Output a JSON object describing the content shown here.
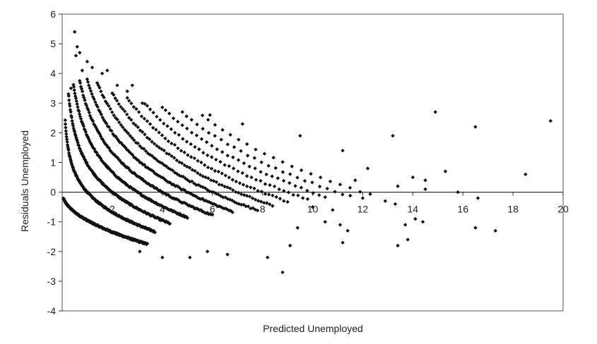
{
  "chart_data": {
    "type": "scatter",
    "title": "",
    "xlabel": "Predicted Unemployed",
    "ylabel": "Residuals Unemployed",
    "xlim": [
      0,
      20
    ],
    "ylim": [
      -4,
      6
    ],
    "x_ticks": [
      "2",
      "4",
      "6",
      "8",
      "10",
      "12",
      "14",
      "16",
      "18",
      "20"
    ],
    "y_ticks": [
      "6",
      "5",
      "4",
      "3",
      "2",
      "1",
      "0",
      "-1",
      "-2",
      "-3",
      "-4"
    ],
    "grid": false,
    "legend": "none",
    "marker": "diamond",
    "point_color": "#111111",
    "curve_families": [
      {
        "k": 0,
        "x_range": [
          0.05,
          3.4
        ],
        "count": 260
      },
      {
        "k": 1,
        "x_range": [
          0.12,
          3.7
        ],
        "count": 190
      },
      {
        "k": 2,
        "x_range": [
          0.25,
          4.3
        ],
        "count": 160
      },
      {
        "k": 3,
        "x_range": [
          0.45,
          5.0
        ],
        "count": 140
      },
      {
        "k": 4,
        "x_range": [
          0.7,
          6.0
        ],
        "count": 120
      },
      {
        "k": 5,
        "x_range": [
          1.0,
          6.8
        ],
        "count": 100
      },
      {
        "k": 6,
        "x_range": [
          1.4,
          7.8
        ],
        "count": 80
      },
      {
        "k": 7,
        "x_range": [
          2.0,
          8.4
        ],
        "count": 65
      },
      {
        "k": 8,
        "x_range": [
          2.6,
          9.0
        ],
        "count": 50
      },
      {
        "k": 9,
        "x_range": [
          3.3,
          9.8
        ],
        "count": 40
      },
      {
        "k": 10,
        "x_range": [
          4.0,
          10.5
        ],
        "count": 32
      },
      {
        "k": 11,
        "x_range": [
          4.8,
          11.5
        ],
        "count": 26
      },
      {
        "k": 12,
        "x_range": [
          5.6,
          12.3
        ],
        "count": 20
      }
    ],
    "extra_points": [
      [
        0.5,
        5.4
      ],
      [
        0.6,
        4.9
      ],
      [
        0.55,
        4.6
      ],
      [
        0.7,
        4.7
      ],
      [
        0.8,
        4.1
      ],
      [
        1.0,
        4.4
      ],
      [
        1.2,
        4.2
      ],
      [
        0.35,
        3.5
      ],
      [
        1.6,
        4.0
      ],
      [
        1.8,
        4.1
      ],
      [
        2.2,
        3.6
      ],
      [
        2.6,
        3.4
      ],
      [
        2.8,
        3.6
      ],
      [
        3.2,
        3.0
      ],
      [
        5.9,
        2.6
      ],
      [
        7.2,
        2.3
      ],
      [
        9.5,
        1.9
      ],
      [
        13.2,
        1.9
      ],
      [
        14.9,
        2.7
      ],
      [
        16.5,
        2.2
      ],
      [
        19.5,
        2.4
      ],
      [
        18.5,
        0.6
      ],
      [
        15.3,
        0.7
      ],
      [
        14.0,
        0.5
      ],
      [
        14.5,
        0.4
      ],
      [
        12.2,
        0.8
      ],
      [
        11.2,
        1.4
      ],
      [
        13.4,
        0.2
      ],
      [
        14.5,
        0.1
      ],
      [
        15.8,
        0.0
      ],
      [
        16.6,
        -0.2
      ],
      [
        12.9,
        -0.3
      ],
      [
        13.3,
        -0.4
      ],
      [
        14.1,
        -0.9
      ],
      [
        14.4,
        -1.0
      ],
      [
        13.7,
        -1.1
      ],
      [
        16.5,
        -1.2
      ],
      [
        17.3,
        -1.3
      ],
      [
        13.8,
        -1.6
      ],
      [
        13.4,
        -1.8
      ],
      [
        11.1,
        -1.1
      ],
      [
        11.4,
        -1.3
      ],
      [
        10.8,
        -0.6
      ],
      [
        10.0,
        -0.5
      ],
      [
        9.4,
        -1.2
      ],
      [
        9.1,
        -1.8
      ],
      [
        8.8,
        -2.7
      ],
      [
        8.2,
        -2.2
      ],
      [
        6.6,
        -2.1
      ],
      [
        5.8,
        -2.0
      ],
      [
        5.1,
        -2.2
      ],
      [
        4.0,
        -2.2
      ],
      [
        3.1,
        -2.0
      ],
      [
        11.2,
        -1.7
      ],
      [
        10.5,
        -1.0
      ],
      [
        12.0,
        -0.2
      ],
      [
        11.7,
        0.4
      ]
    ]
  }
}
